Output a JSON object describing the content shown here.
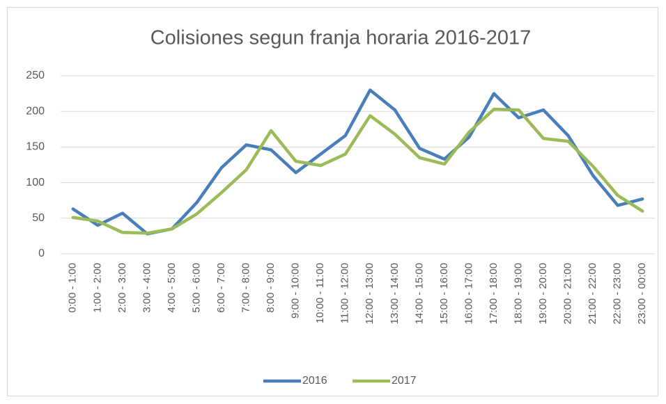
{
  "chart_data": {
    "type": "line",
    "title": "Colisiones segun franja horaria 2016-2017",
    "categories": [
      "0:00 - 1:00",
      "1:00 - 2:00",
      "2:00 - 3:00",
      "3:00 - 4:00",
      "4:00 - 5:00",
      "5:00 - 6:00",
      "6:00 - 7:00",
      "7:00 - 8:00",
      "8:00 - 9:00",
      "9:00 - 10:00",
      "10:00 - 11:00",
      "11:00 - 12:00",
      "12:00 - 13:00",
      "13:00 - 14:00",
      "14:00 - 15:00",
      "15:00 - 16:00",
      "16:00 - 17:00",
      "17:00 - 18:00",
      "18:00 - 19:00",
      "19:00 - 20:00",
      "20:00 - 21:00",
      "21:00 - 22:00",
      "22:00 - 23:00",
      "23:00 - 00:00"
    ],
    "series": [
      {
        "name": "2016",
        "color": "#4a7ebb",
        "values": [
          63,
          40,
          57,
          28,
          35,
          72,
          121,
          153,
          146,
          114,
          140,
          166,
          230,
          202,
          148,
          133,
          164,
          225,
          191,
          202,
          166,
          110,
          68,
          77
        ]
      },
      {
        "name": "2017",
        "color": "#9bbb59",
        "values": [
          51,
          46,
          30,
          29,
          35,
          56,
          86,
          118,
          173,
          130,
          124,
          140,
          194,
          168,
          135,
          126,
          171,
          203,
          202,
          162,
          158,
          123,
          82,
          60
        ]
      }
    ],
    "ylim": [
      0,
      250
    ],
    "yticks": [
      0,
      50,
      100,
      150,
      200,
      250
    ],
    "grid": true,
    "legend": "bottom"
  }
}
